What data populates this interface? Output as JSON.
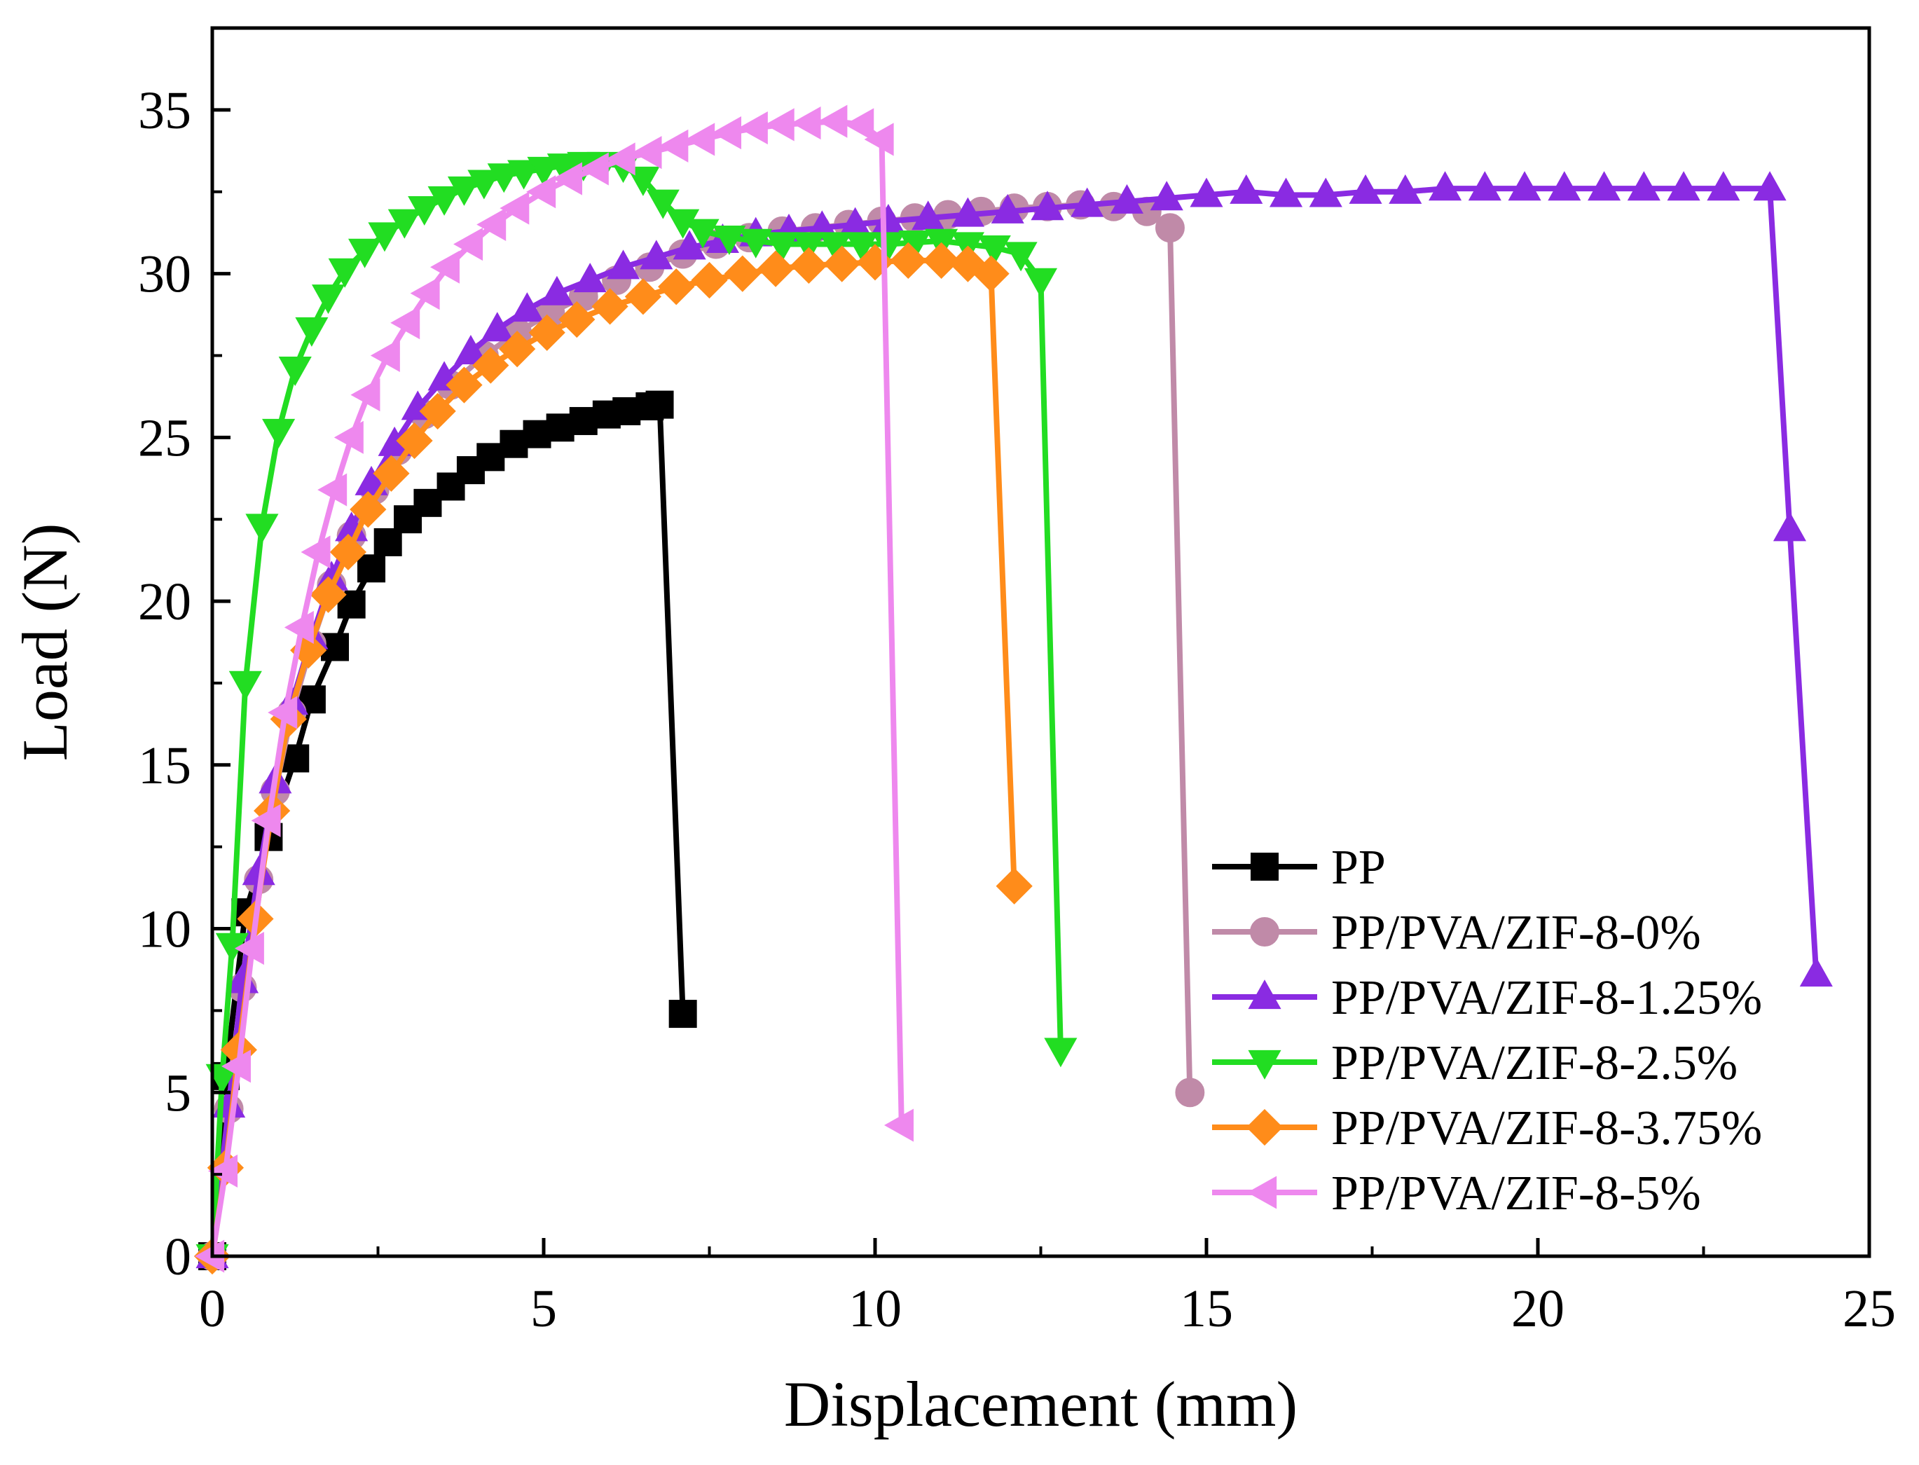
{
  "chart_data": {
    "type": "line",
    "title": "",
    "xlabel": "Displacement (mm)",
    "ylabel": "Load (N)",
    "xlim": [
      0,
      25
    ],
    "ylim": [
      0,
      37.5
    ],
    "xticks": [
      0,
      5,
      10,
      15,
      20,
      25
    ],
    "yticks": [
      0,
      5,
      10,
      15,
      20,
      25,
      30,
      35
    ],
    "grid": false,
    "legend_position": "bottom-right",
    "series": [
      {
        "name": "PP",
        "color": "#000000",
        "marker": "square",
        "x": [
          0,
          0.2,
          0.5,
          0.85,
          1.25,
          1.5,
          1.85,
          2.1,
          2.4,
          2.65,
          2.95,
          3.25,
          3.6,
          3.9,
          4.2,
          4.55,
          4.9,
          5.25,
          5.6,
          5.95,
          6.25,
          6.6,
          6.75,
          7.1
        ],
        "y": [
          0,
          5.5,
          10.5,
          12.8,
          15.2,
          17.0,
          18.6,
          19.9,
          21.0,
          21.8,
          22.5,
          23.0,
          23.5,
          24.0,
          24.4,
          24.8,
          25.1,
          25.3,
          25.5,
          25.7,
          25.8,
          25.95,
          26.0,
          7.4
        ]
      },
      {
        "name": "PP/PVA/ZIF-8-0%",
        "color": "#c08aa8",
        "marker": "circle",
        "x": [
          0,
          0.25,
          0.45,
          0.7,
          0.95,
          1.2,
          1.5,
          1.8,
          2.1,
          2.45,
          2.8,
          3.2,
          3.6,
          4.1,
          4.6,
          5.1,
          5.6,
          6.1,
          6.6,
          7.1,
          7.6,
          8.1,
          8.6,
          9.1,
          9.6,
          10.1,
          10.6,
          11.1,
          11.6,
          12.1,
          12.6,
          13.1,
          13.6,
          14.1,
          14.45,
          14.75
        ],
        "y": [
          0,
          4.5,
          8.2,
          11.5,
          14.2,
          16.6,
          18.7,
          20.5,
          22.0,
          23.4,
          24.6,
          25.7,
          26.6,
          27.5,
          28.2,
          28.8,
          29.3,
          29.8,
          30.2,
          30.6,
          30.9,
          31.1,
          31.3,
          31.4,
          31.5,
          31.6,
          31.7,
          31.8,
          31.9,
          32.0,
          32.05,
          32.1,
          32.05,
          31.9,
          31.4,
          5.0
        ]
      },
      {
        "name": "PP/PVA/ZIF-8-1.25%",
        "color": "#8a2be2",
        "marker": "triangle-up",
        "x": [
          0,
          0.25,
          0.45,
          0.7,
          0.95,
          1.2,
          1.5,
          1.8,
          2.1,
          2.4,
          2.75,
          3.1,
          3.5,
          3.9,
          4.3,
          4.75,
          5.2,
          5.7,
          6.2,
          6.7,
          7.2,
          7.7,
          8.2,
          8.7,
          9.2,
          9.7,
          10.2,
          10.8,
          11.4,
          12.0,
          12.6,
          13.2,
          13.8,
          14.4,
          15.0,
          15.6,
          16.2,
          16.8,
          17.4,
          18.0,
          18.6,
          19.2,
          19.8,
          20.4,
          21.0,
          21.6,
          22.2,
          22.8,
          23.5,
          23.8,
          24.2
        ],
        "y": [
          0,
          4.6,
          8.4,
          11.7,
          14.5,
          16.9,
          18.9,
          20.7,
          22.2,
          23.6,
          24.8,
          25.9,
          26.8,
          27.6,
          28.3,
          28.9,
          29.4,
          29.8,
          30.2,
          30.5,
          30.8,
          31.0,
          31.2,
          31.3,
          31.4,
          31.5,
          31.6,
          31.7,
          31.8,
          31.9,
          32.0,
          32.1,
          32.2,
          32.3,
          32.4,
          32.5,
          32.4,
          32.4,
          32.5,
          32.5,
          32.6,
          32.6,
          32.6,
          32.6,
          32.6,
          32.6,
          32.6,
          32.6,
          32.6,
          22.2,
          8.6
        ]
      },
      {
        "name": "PP/PVA/ZIF-8-2.5%",
        "color": "#22dd22",
        "marker": "triangle-down",
        "x": [
          0,
          0.15,
          0.3,
          0.5,
          0.75,
          1.0,
          1.25,
          1.5,
          1.75,
          2.0,
          2.3,
          2.6,
          2.9,
          3.2,
          3.5,
          3.8,
          4.1,
          4.4,
          4.7,
          5.0,
          5.3,
          5.6,
          5.9,
          6.2,
          6.5,
          6.8,
          7.1,
          7.4,
          7.8,
          8.2,
          8.6,
          9.0,
          9.4,
          9.8,
          10.2,
          10.6,
          11.0,
          11.4,
          11.8,
          12.2,
          12.5,
          12.8
        ],
        "y": [
          0,
          5.5,
          9.5,
          17.5,
          22.3,
          25.2,
          27.1,
          28.3,
          29.3,
          30.1,
          30.7,
          31.2,
          31.6,
          32.0,
          32.3,
          32.6,
          32.8,
          33.0,
          33.1,
          33.2,
          33.3,
          33.35,
          33.35,
          33.3,
          32.9,
          32.2,
          31.6,
          31.3,
          31.1,
          31.0,
          30.9,
          30.9,
          30.9,
          30.9,
          30.9,
          30.95,
          31.0,
          30.9,
          30.8,
          30.6,
          29.8,
          6.3
        ]
      },
      {
        "name": "PP/PVA/ZIF-8-3.75%",
        "color": "#ff8c1a",
        "marker": "diamond",
        "x": [
          0,
          0.2,
          0.4,
          0.65,
          0.9,
          1.15,
          1.45,
          1.75,
          2.05,
          2.35,
          2.7,
          3.05,
          3.4,
          3.8,
          4.2,
          4.6,
          5.05,
          5.5,
          6.0,
          6.5,
          7.0,
          7.5,
          8.0,
          8.5,
          9.0,
          9.5,
          10.0,
          10.5,
          11.0,
          11.4,
          11.75,
          12.1
        ],
        "y": [
          0,
          2.7,
          6.3,
          10.3,
          13.6,
          16.4,
          18.5,
          20.2,
          21.5,
          22.8,
          23.9,
          24.9,
          25.8,
          26.6,
          27.2,
          27.7,
          28.2,
          28.6,
          29.0,
          29.3,
          29.6,
          29.8,
          30.0,
          30.15,
          30.25,
          30.3,
          30.35,
          30.4,
          30.4,
          30.3,
          30.0,
          11.3
        ]
      },
      {
        "name": "PP/PVA/ZIF-8-5%",
        "color": "#ee88ee",
        "marker": "triangle-left",
        "x": [
          0,
          0.2,
          0.4,
          0.6,
          0.85,
          1.1,
          1.35,
          1.6,
          1.85,
          2.1,
          2.35,
          2.65,
          2.95,
          3.25,
          3.55,
          3.9,
          4.25,
          4.6,
          5.0,
          5.4,
          5.8,
          6.2,
          6.6,
          7.0,
          7.4,
          7.8,
          8.2,
          8.6,
          9.0,
          9.4,
          9.8,
          10.1,
          10.4
        ],
        "y": [
          0,
          2.6,
          5.8,
          9.4,
          13.3,
          16.6,
          19.2,
          21.5,
          23.4,
          25.0,
          26.3,
          27.5,
          28.5,
          29.4,
          30.2,
          30.9,
          31.5,
          32.0,
          32.5,
          32.9,
          33.2,
          33.5,
          33.7,
          33.9,
          34.1,
          34.3,
          34.45,
          34.55,
          34.6,
          34.65,
          34.55,
          34.1,
          4.0
        ]
      }
    ]
  }
}
